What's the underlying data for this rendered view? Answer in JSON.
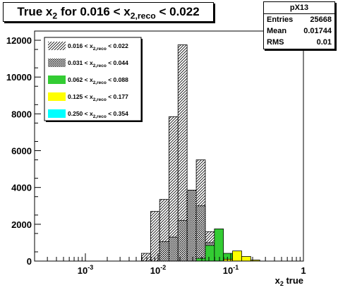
{
  "title": {
    "main": "True x",
    "sub": "2",
    "rest": " for 0.016 < x",
    "sub2": "2,reco",
    "tail": " < 0.022"
  },
  "stats": {
    "name": "pX13",
    "rows": [
      {
        "label": "Entries",
        "value": "25668"
      },
      {
        "label": "Mean",
        "value": "0.01744"
      },
      {
        "label": "RMS",
        "value": "0.01"
      }
    ]
  },
  "chart_data": {
    "type": "bar",
    "xlabel": "x2 true",
    "xlabel_main": "x",
    "xlabel_sub": "2",
    "xlabel_tail": " true",
    "x_scale": "log",
    "xlim": [
      0.0002,
      1
    ],
    "ylim": [
      0,
      12500
    ],
    "y_ticks": [
      0,
      2000,
      4000,
      6000,
      8000,
      10000,
      12000
    ],
    "y_tick_labels": [
      "0",
      "2000",
      "4000",
      "6000",
      "8000",
      "10000",
      "12000"
    ],
    "x_tick_labels": [
      {
        "base": "10",
        "exp": "-3",
        "x": 0.001
      },
      {
        "base": "10",
        "exp": "-2",
        "x": 0.01
      },
      {
        "base": "10",
        "exp": "-1",
        "x": 0.1
      },
      {
        "base": "1",
        "exp": "",
        "x": 1
      }
    ],
    "legend_placement": "top-left",
    "series": [
      {
        "name": "0.016 < x2,reco < 0.022",
        "label_pre": "0.016 < x",
        "label_sub": "2,reco",
        "label_post": " < 0.022",
        "fill": "#8f8fb8",
        "pattern": "hatch",
        "bins": [
          {
            "x0": 0.0059,
            "x1": 0.0079,
            "y": 420
          },
          {
            "x0": 0.0079,
            "x1": 0.0105,
            "y": 2700
          },
          {
            "x0": 0.0105,
            "x1": 0.0141,
            "y": 3350
          },
          {
            "x0": 0.0141,
            "x1": 0.0188,
            "y": 7850
          },
          {
            "x0": 0.0188,
            "x1": 0.0251,
            "y": 11750
          },
          {
            "x0": 0.0251,
            "x1": 0.0335,
            "y": 3850
          },
          {
            "x0": 0.0335,
            "x1": 0.0447,
            "y": 5500
          },
          {
            "x0": 0.0447,
            "x1": 0.0596,
            "y": 1600
          }
        ]
      },
      {
        "name": "0.031 < x2,reco < 0.044",
        "label_pre": "0.031 < x",
        "label_sub": "2,reco",
        "label_post": " < 0.044",
        "fill": "#000000",
        "pattern": "dots",
        "bins": [
          {
            "x0": 0.0105,
            "x1": 0.0141,
            "y": 1050
          },
          {
            "x0": 0.0141,
            "x1": 0.0188,
            "y": 1300
          },
          {
            "x0": 0.0188,
            "x1": 0.0251,
            "y": 2200
          },
          {
            "x0": 0.0251,
            "x1": 0.0335,
            "y": 3850
          },
          {
            "x0": 0.0335,
            "x1": 0.0447,
            "y": 3000
          },
          {
            "x0": 0.0447,
            "x1": 0.0596,
            "y": 1000
          }
        ]
      },
      {
        "name": "0.062 < x2,reco < 0.088",
        "label_pre": "0.062 < x",
        "label_sub": "2,reco",
        "label_post": " < 0.088",
        "fill": "#33cc33",
        "pattern": "solid",
        "bins": [
          {
            "x0": 0.0335,
            "x1": 0.0447,
            "y": 150
          },
          {
            "x0": 0.0447,
            "x1": 0.0596,
            "y": 850
          },
          {
            "x0": 0.0596,
            "x1": 0.0794,
            "y": 1750
          },
          {
            "x0": 0.0794,
            "x1": 0.1059,
            "y": 420
          },
          {
            "x0": 0.1059,
            "x1": 0.1413,
            "y": 150
          }
        ]
      },
      {
        "name": "0.125 < x2,reco < 0.177",
        "label_pre": "0.125 < x",
        "label_sub": "2,reco",
        "label_post": " < 0.177",
        "fill": "#ffff00",
        "pattern": "solid",
        "bins": [
          {
            "x0": 0.0794,
            "x1": 0.1059,
            "y": 100
          },
          {
            "x0": 0.1059,
            "x1": 0.1413,
            "y": 550
          },
          {
            "x0": 0.1413,
            "x1": 0.1884,
            "y": 250
          },
          {
            "x0": 0.1884,
            "x1": 0.2512,
            "y": 60
          }
        ]
      },
      {
        "name": "0.250 < x2,reco < 0.354",
        "label_pre": "0.250 < x",
        "label_sub": "2,reco",
        "label_post": " < 0.354",
        "fill": "#00ffff",
        "pattern": "solid",
        "bins": []
      }
    ]
  }
}
